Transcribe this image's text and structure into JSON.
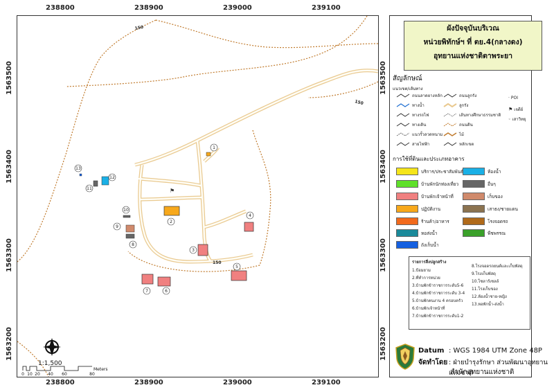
{
  "coords": {
    "x_labels": [
      "238800",
      "238900",
      "239000",
      "239100"
    ],
    "y_labels": [
      "1563500",
      "1563400",
      "1563300",
      "1563200"
    ]
  },
  "map": {
    "road_label_150": "150",
    "scale_ratio": "1:1,500",
    "scale_ticks": [
      "0",
      "10",
      "20",
      "40",
      "60",
      "80"
    ],
    "scale_unit": "Meters",
    "point_numbers": [
      "1",
      "2",
      "3",
      "4",
      "5",
      "6",
      "7",
      "8",
      "9",
      "10",
      "11",
      "12",
      "13"
    ]
  },
  "title": {
    "line1": "ผังปัจจุบันบริเวณ",
    "line2": "หน่วยพิทักษ์ฯ ที่ ตย.4(กลางดง)",
    "line3": "อุทยานแห่งชาติตาพระยา"
  },
  "legend": {
    "symbol_title": "สัญลักษณ์",
    "lines_title": "แนวเขต/เส้นทาง",
    "line_items": [
      {
        "label": "ถนนลาดยางหลัก",
        "color": "#333333"
      },
      {
        "label": "ทางน้ำ",
        "color": "#1f6fd1"
      },
      {
        "label": "ทางรถไฟ",
        "color": "#333333"
      },
      {
        "label": "ทางเดิน",
        "color": "#333333"
      },
      {
        "label": "แนวรั้วลวดหนาม",
        "color": "#333333"
      },
      {
        "label": "สายไฟฟ้า",
        "color": "#333333"
      },
      {
        "label": "ถนนลูกรัง",
        "color": "#333333"
      },
      {
        "label": "ลูกรัง",
        "color": "#e9c98f"
      },
      {
        "label": "เส้นทางศึกษาธรรมชาติ",
        "color": "#333333"
      },
      {
        "label": "ถนนดิน",
        "color": "#c07a2c"
      },
      {
        "label": "ไม้",
        "color": "#c07a2c"
      },
      {
        "label": "หลักเขต",
        "color": "#333333"
      }
    ],
    "point_items": [
      "POI",
      "เจดีย์",
      "เสาวิทยุ"
    ],
    "landuse_title": "การใช้ที่ดินและประเภทอาคาร",
    "landuse_items": [
      {
        "label": "บริการ/ประชาสัมพันธ์",
        "color": "#f5e51a"
      },
      {
        "label": "ห้องน้ำ",
        "color": "#1ab0e6"
      },
      {
        "label": "บ้านพักนักท่องเที่ยว",
        "color": "#5fe02a"
      },
      {
        "label": "อื่นๆ",
        "color": "#666666"
      },
      {
        "label": "บ้านพักเจ้าหน้าที่",
        "color": "#f08080"
      },
      {
        "label": "เก็บของ",
        "color": "#d08a6c"
      },
      {
        "label": "ปฏิบัติงาน",
        "color": "#f7a81b"
      },
      {
        "label": "เสาธง/ชายแดน",
        "color": "#8b7350"
      },
      {
        "label": "ร้านค้า/อาหาร",
        "color": "#f26a1c"
      },
      {
        "label": "โรงจอดรถ",
        "color": "#b06a1a"
      },
      {
        "label": "หอส่งน้ำ",
        "color": "#1a8a9a"
      },
      {
        "label": "พืชพรรณ",
        "color": "#3aa12a"
      },
      {
        "label": "ถังเก็บน้ำ",
        "color": "#1560e0"
      }
    ],
    "facility_title": "รายการสิ่งปลูกสร้าง",
    "facility_left": [
      "1.ป้อมยาม",
      "2.ที่ทำการหน่วย",
      "3.บ้านพักข้าราชการระดับ5-6",
      "4.บ้านพักข้าราชการระดับ 3-4",
      "5.บ้านพักคนงาน 4 ครอบครัว",
      "6.บ้านพักเจ้าหน้าที่",
      "7.บ้านพักข้าราชการระดับ1-2"
    ],
    "facility_right": [
      "8.โรงจอดรถยนต์และเก็บพัสดุ",
      "9.โรงเก็บพัสดุ",
      "10.โซลาร์เซลล์",
      "11.โรงเก็บของ",
      "12.ห้องน้ำชาย-หญิง",
      "13.หอพักน้ำ-ส่งน้ำ"
    ]
  },
  "footer": {
    "datum_label": "Datum",
    "datum_value": ": WGS 1984 UTM Zone 48P",
    "made_by_label": "จัดทำโดย",
    "made_by_value": ": ฝ่ายบำรุงรักษา ส่วนพัฒนาอุทยานแห่งชาติ",
    "org": "สำนักอุทยานแห่งชาติ"
  }
}
